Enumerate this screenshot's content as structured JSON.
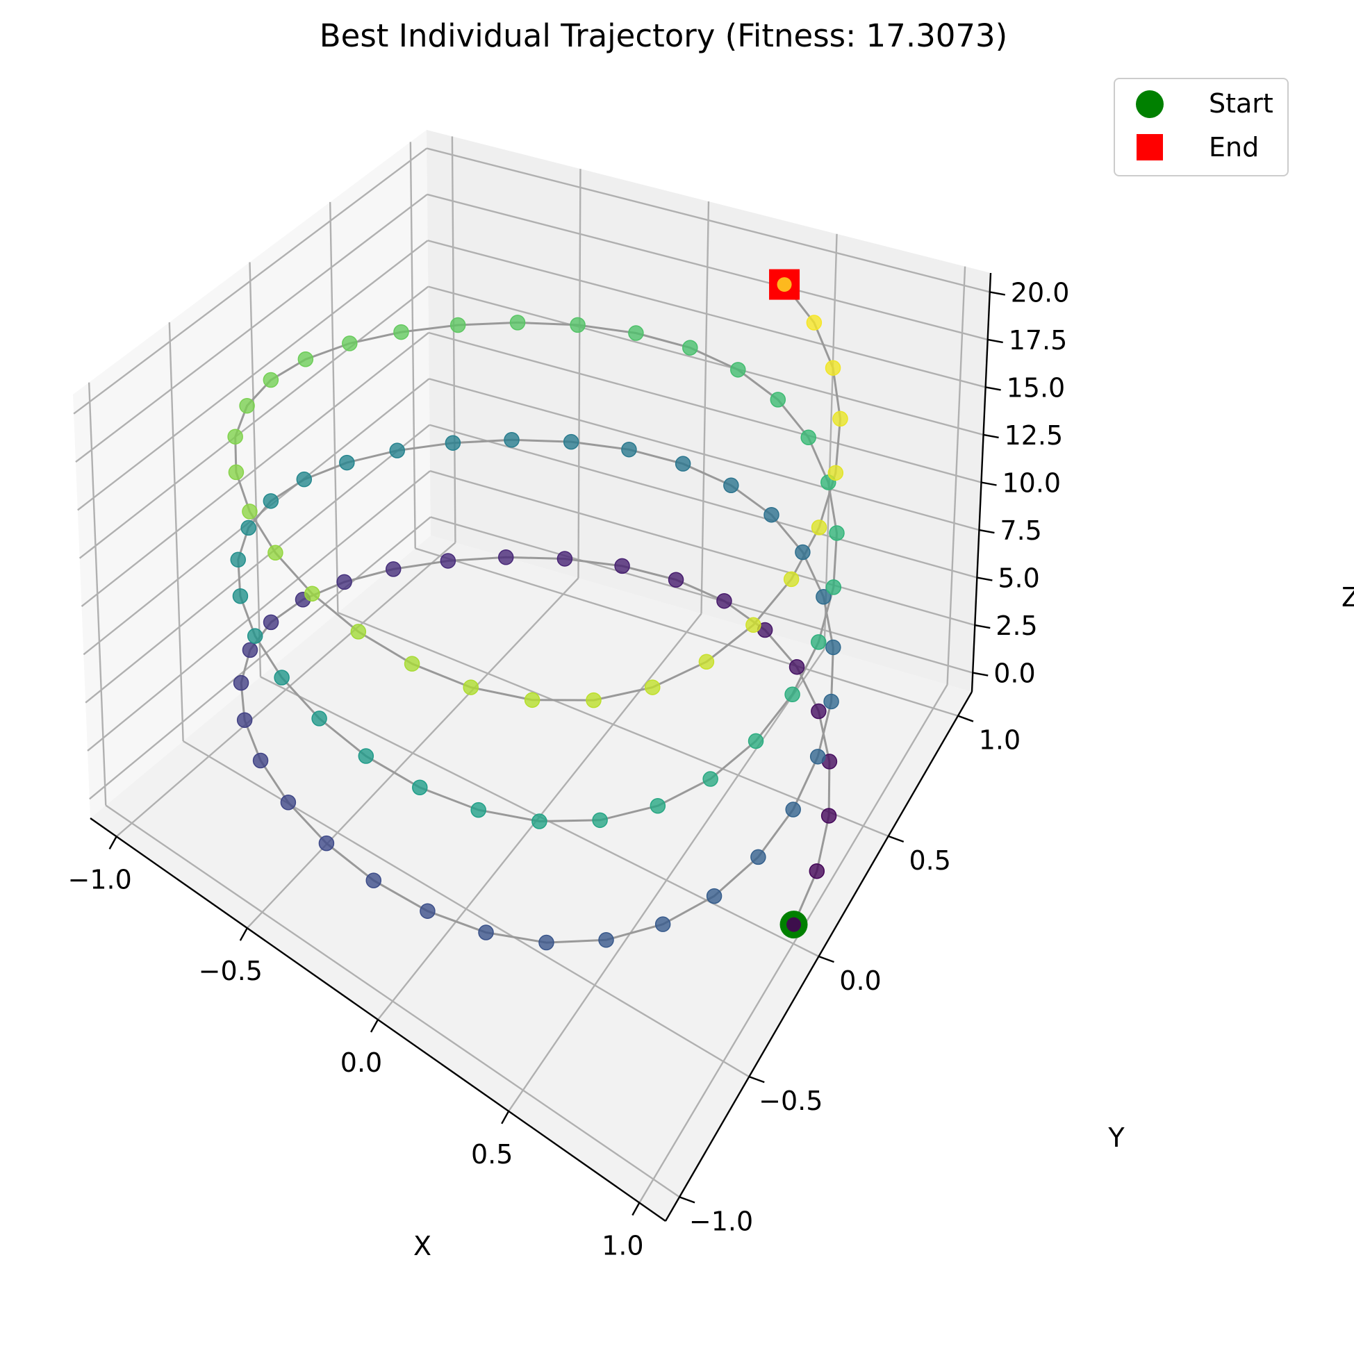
{
  "chart_data": {
    "type": "scatter",
    "projection": "3d",
    "title": "Best Individual Trajectory (Fitness: 17.3073)",
    "xlabel": "X",
    "ylabel": "Y",
    "zlabel": "Z",
    "xlim": [
      -1.1,
      1.1
    ],
    "ylim": [
      -1.1,
      1.1
    ],
    "zlim": [
      -1,
      21
    ],
    "xticks": [
      -1.0,
      -0.5,
      0.0,
      0.5,
      1.0
    ],
    "xtick_labels": [
      "−1.0",
      "−0.5",
      "0.0",
      "0.5",
      "1.0"
    ],
    "yticks": [
      -1.0,
      -0.5,
      0.0,
      0.5,
      1.0
    ],
    "ytick_labels": [
      "−1.0",
      "−0.5",
      "0.0",
      "0.5",
      "1.0"
    ],
    "zticks": [
      0.0,
      2.5,
      5.0,
      7.5,
      10.0,
      12.5,
      15.0,
      17.5,
      20.0
    ],
    "ztick_labels": [
      "0.0",
      "2.5",
      "5.0",
      "7.5",
      "10.0",
      "12.5",
      "15.0",
      "17.5",
      "20.0"
    ],
    "grid": true,
    "colormap": "viridis",
    "line_color": "#999999",
    "trajectory": {
      "description": "helix",
      "x": "cos(t)",
      "y": "sin(t)",
      "z": "t",
      "t_start": 0,
      "t_end": 20,
      "num_points": 100
    },
    "start": {
      "x": 1.0,
      "y": 0.0,
      "z": 0.0
    },
    "end": {
      "x": 0.408,
      "y": 0.913,
      "z": 20.0
    },
    "legend": {
      "position": "top-right",
      "entries": [
        {
          "label": "Start",
          "marker": "circle",
          "color": "#008000"
        },
        {
          "label": "End",
          "marker": "square",
          "color": "#ff0000"
        }
      ]
    }
  }
}
